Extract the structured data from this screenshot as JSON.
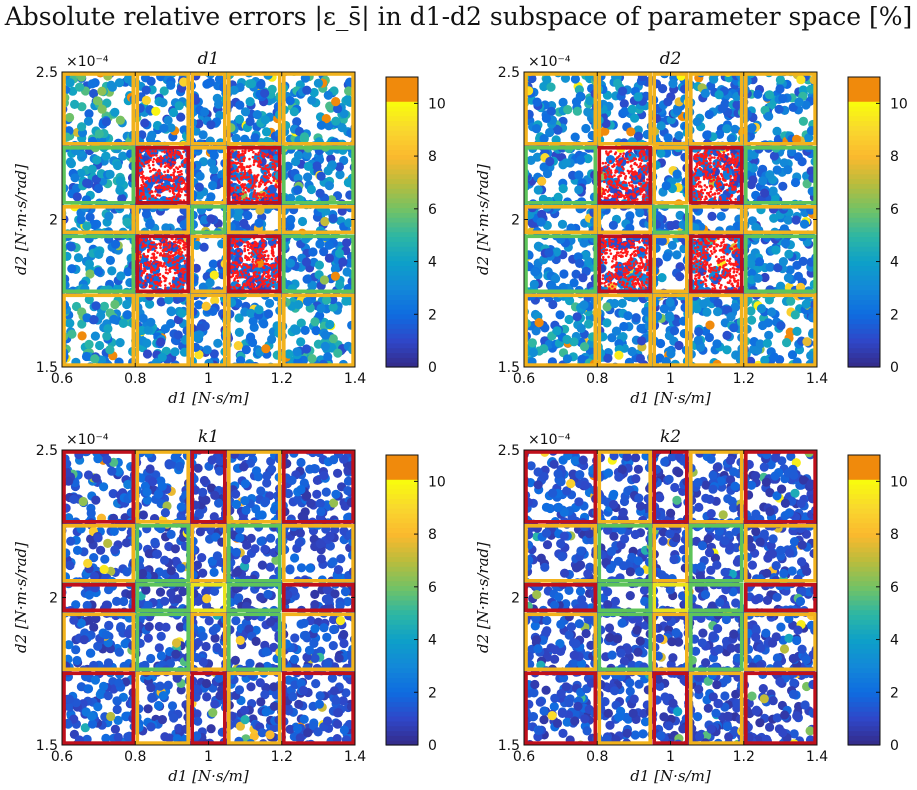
{
  "figure": {
    "title": "Absolute relative errors |ε_s̄| in d1-d2 subspace of parameter space [%]"
  },
  "chart_data": [
    {
      "type": "scatter",
      "title": "d1",
      "xlabel": "d1 [N·s/m]",
      "ylabel": "d2 [N·m·s/rad]",
      "exponent_label": "×10⁻⁴",
      "xlim": [
        0.6,
        1.4
      ],
      "ylim": [
        1.5,
        2.5
      ],
      "xticks": [
        "0.6",
        "0.8",
        "1",
        "1.2",
        "1.4"
      ],
      "yticks": [
        "1.5",
        "2",
        "2.5"
      ],
      "colorbar": {
        "range": [
          0,
          11
        ],
        "ticks": [
          "0",
          "2",
          "4",
          "6",
          "8",
          "10"
        ],
        "colormap": "parula"
      },
      "region_edges_x": [
        0.6,
        0.8,
        0.95,
        1.05,
        1.2,
        1.4
      ],
      "region_edges_y": [
        1.5,
        1.75,
        1.95,
        2.05,
        2.25,
        2.5
      ],
      "region_level": [
        [
          1,
          1,
          1,
          1,
          1
        ],
        [
          2,
          0,
          1,
          0,
          2
        ],
        [
          1,
          1,
          2,
          1,
          1
        ],
        [
          2,
          0,
          1,
          0,
          2
        ],
        [
          1,
          1,
          1,
          1,
          1
        ]
      ],
      "mean_error": [
        [
          3.8,
          2.6,
          2.0,
          2.8,
          3.3
        ],
        [
          3.0,
          1.8,
          2.2,
          1.8,
          2.6
        ],
        [
          2.8,
          2.1,
          1.9,
          2.1,
          2.5
        ],
        [
          3.0,
          1.8,
          2.2,
          1.8,
          2.6
        ],
        [
          3.9,
          2.7,
          2.0,
          2.8,
          3.4
        ]
      ]
    },
    {
      "type": "scatter",
      "title": "d2",
      "xlabel": "d1 [N·s/m]",
      "ylabel": "d2 [N·m·s/rad]",
      "exponent_label": "×10⁻⁴",
      "xlim": [
        0.6,
        1.4
      ],
      "ylim": [
        1.5,
        2.5
      ],
      "xticks": [
        "0.6",
        "0.8",
        "1",
        "1.2",
        "1.4"
      ],
      "yticks": [
        "1.5",
        "2",
        "2.5"
      ],
      "colorbar": {
        "range": [
          0,
          11
        ],
        "ticks": [
          "0",
          "2",
          "4",
          "6",
          "8",
          "10"
        ],
        "colormap": "parula"
      },
      "region_edges_x": [
        0.6,
        0.8,
        0.95,
        1.05,
        1.2,
        1.4
      ],
      "region_edges_y": [
        1.5,
        1.75,
        1.95,
        2.05,
        2.25,
        2.5
      ],
      "region_level": [
        [
          1,
          1,
          1,
          1,
          1
        ],
        [
          2,
          0,
          1,
          0,
          2
        ],
        [
          1,
          1,
          2,
          1,
          1
        ],
        [
          2,
          0,
          1,
          0,
          2
        ],
        [
          1,
          1,
          1,
          1,
          1
        ]
      ],
      "mean_error": [
        [
          3.2,
          2.6,
          2.2,
          2.6,
          3.0
        ],
        [
          2.6,
          2.0,
          2.4,
          2.0,
          2.4
        ],
        [
          2.5,
          2.2,
          2.0,
          2.2,
          2.4
        ],
        [
          2.6,
          2.0,
          2.4,
          2.0,
          2.4
        ],
        [
          3.3,
          2.7,
          2.2,
          2.6,
          3.1
        ]
      ]
    },
    {
      "type": "scatter",
      "title": "k1",
      "xlabel": "d1 [N·s/m]",
      "ylabel": "d2 [N·m·s/rad]",
      "exponent_label": "×10⁻⁴",
      "xlim": [
        0.6,
        1.4
      ],
      "ylim": [
        1.5,
        2.5
      ],
      "xticks": [
        "0.6",
        "0.8",
        "1",
        "1.2",
        "1.4"
      ],
      "yticks": [
        "1.5",
        "2",
        "2.5"
      ],
      "colorbar": {
        "range": [
          0,
          11
        ],
        "ticks": [
          "0",
          "2",
          "4",
          "6",
          "8",
          "10"
        ],
        "colormap": "parula"
      },
      "region_edges_x": [
        0.6,
        0.8,
        0.95,
        1.05,
        1.2,
        1.4
      ],
      "region_edges_y": [
        1.5,
        1.75,
        1.95,
        2.05,
        2.25,
        2.5
      ],
      "region_level": [
        [
          0,
          1,
          0,
          1,
          0
        ],
        [
          1,
          2,
          1,
          2,
          1
        ],
        [
          0,
          2,
          3,
          2,
          0
        ],
        [
          1,
          2,
          1,
          2,
          1
        ],
        [
          0,
          1,
          0,
          1,
          0
        ]
      ],
      "mean_error": [
        [
          1.5,
          1.4,
          1.1,
          1.4,
          1.3
        ],
        [
          1.4,
          1.2,
          1.2,
          1.2,
          1.3
        ],
        [
          1.3,
          1.2,
          1.0,
          1.2,
          1.2
        ],
        [
          1.4,
          1.2,
          1.2,
          1.2,
          1.3
        ],
        [
          1.6,
          1.5,
          1.1,
          1.4,
          1.3
        ]
      ]
    },
    {
      "type": "scatter",
      "title": "k2",
      "xlabel": "d1 [N·s/m]",
      "ylabel": "d2 [N·m·s/rad]",
      "exponent_label": "×10⁻⁴",
      "xlim": [
        0.6,
        1.4
      ],
      "ylim": [
        1.5,
        2.5
      ],
      "xticks": [
        "0.6",
        "0.8",
        "1",
        "1.2",
        "1.4"
      ],
      "yticks": [
        "1.5",
        "2",
        "2.5"
      ],
      "colorbar": {
        "range": [
          0,
          11
        ],
        "ticks": [
          "0",
          "2",
          "4",
          "6",
          "8",
          "10"
        ],
        "colormap": "parula"
      },
      "region_edges_x": [
        0.6,
        0.8,
        0.95,
        1.05,
        1.2,
        1.4
      ],
      "region_edges_y": [
        1.5,
        1.75,
        1.95,
        2.05,
        2.25,
        2.5
      ],
      "region_level": [
        [
          0,
          1,
          0,
          1,
          0
        ],
        [
          1,
          2,
          1,
          2,
          1
        ],
        [
          0,
          2,
          3,
          2,
          0
        ],
        [
          1,
          2,
          1,
          2,
          1
        ],
        [
          0,
          1,
          0,
          1,
          0
        ]
      ],
      "mean_error": [
        [
          1.3,
          1.3,
          1.0,
          1.2,
          1.1
        ],
        [
          1.3,
          1.1,
          1.1,
          1.1,
          1.2
        ],
        [
          1.2,
          1.1,
          1.0,
          1.1,
          1.1
        ],
        [
          1.3,
          1.1,
          1.1,
          1.1,
          1.2
        ],
        [
          1.4,
          1.4,
          1.0,
          1.2,
          1.2
        ]
      ]
    }
  ],
  "colors": {
    "level_0": "#c0101c",
    "level_1": "#f2b21c",
    "level_2": "#5dc45a",
    "level_3": "#e9e31a",
    "dense_marker": "#ff1a1a",
    "parula": [
      "#352a87",
      "#2f47c8",
      "#0f6ce0",
      "#1388d8",
      "#0ea0c8",
      "#2eb7a3",
      "#74c264",
      "#bbbc3c",
      "#fbb92e",
      "#f9d72e",
      "#f9fb0e"
    ],
    "overflow": "#f08a0c"
  }
}
